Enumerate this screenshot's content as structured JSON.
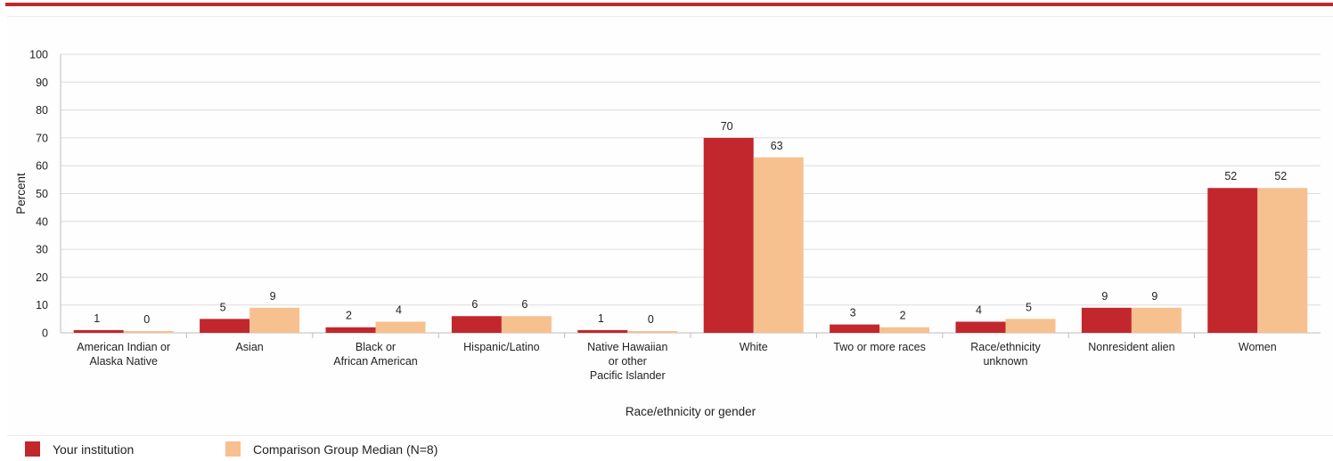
{
  "chart_data": {
    "type": "bar",
    "categories": [
      [
        "American Indian or",
        "Alaska Native"
      ],
      [
        "Asian"
      ],
      [
        "Black or",
        "African American"
      ],
      [
        "Hispanic/Latino"
      ],
      [
        "Native Hawaiian",
        "or other",
        "Pacific Islander"
      ],
      [
        "White"
      ],
      [
        "Two or more races"
      ],
      [
        "Race/ethnicity",
        "unknown"
      ],
      [
        "Nonresident alien"
      ],
      [
        "Women"
      ]
    ],
    "series": [
      {
        "name": "Your institution",
        "color": "#c1272d",
        "values": [
          1,
          5,
          2,
          6,
          1,
          70,
          3,
          4,
          9,
          52
        ]
      },
      {
        "name": "Comparison Group Median (N=8)",
        "color": "#f7c08f",
        "values": [
          0,
          9,
          4,
          6,
          0,
          63,
          2,
          5,
          9,
          52
        ]
      }
    ],
    "ylabel": "Percent",
    "xlabel": "Race/ethnicity or gender",
    "ylim": [
      0,
      100
    ],
    "yticks": [
      0,
      10,
      20,
      30,
      40,
      50,
      60,
      70,
      80,
      90,
      100
    ],
    "grid": true,
    "legend_position": "bottom-left"
  }
}
